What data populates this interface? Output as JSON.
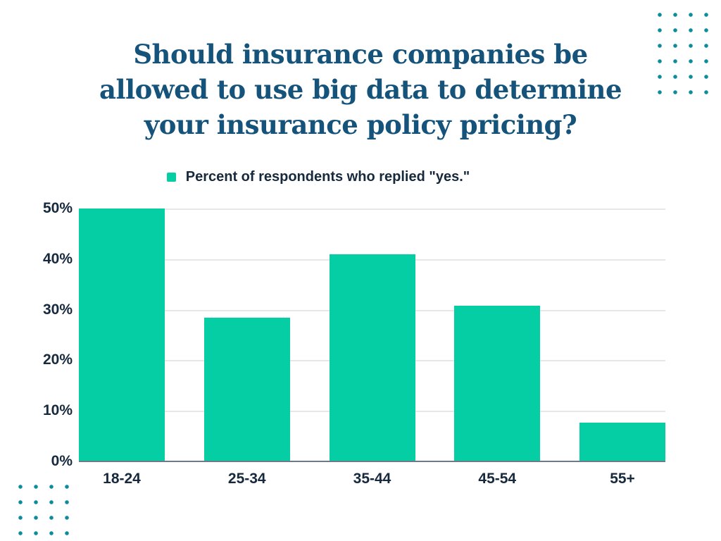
{
  "title": {
    "lines": [
      "Should insurance companies be",
      "allowed to use big data to determine",
      "your insurance policy pricing?"
    ],
    "color": "#15537B"
  },
  "legend": {
    "label": "Percent of respondents who replied \"yes.\"",
    "marker_color": "#06CEA4"
  },
  "chart_data": {
    "type": "bar",
    "title": "Should insurance companies be allowed to use big data to determine your insurance policy pricing?",
    "categories": [
      "18-24",
      "25-34",
      "35-44",
      "45-54",
      "55+"
    ],
    "values": [
      50,
      28.4,
      41,
      30.8,
      7.7
    ],
    "series_name": "Percent of respondents who replied \"yes.\"",
    "xlabel": "",
    "ylabel": "",
    "ylim": [
      0,
      50
    ],
    "yticks": [
      "0%",
      "10%",
      "20%",
      "30%",
      "40%",
      "50%"
    ],
    "ytick_values": [
      0,
      10,
      20,
      30,
      40,
      50
    ],
    "grid": true,
    "legend_position": "top",
    "bar_color": "#06CEA4"
  },
  "decor": {
    "dot_color": "#0F8B9D",
    "gridline_color": "#E7E7E7",
    "baseline_color": "#6E7A8A",
    "text_color": "#16293D"
  }
}
